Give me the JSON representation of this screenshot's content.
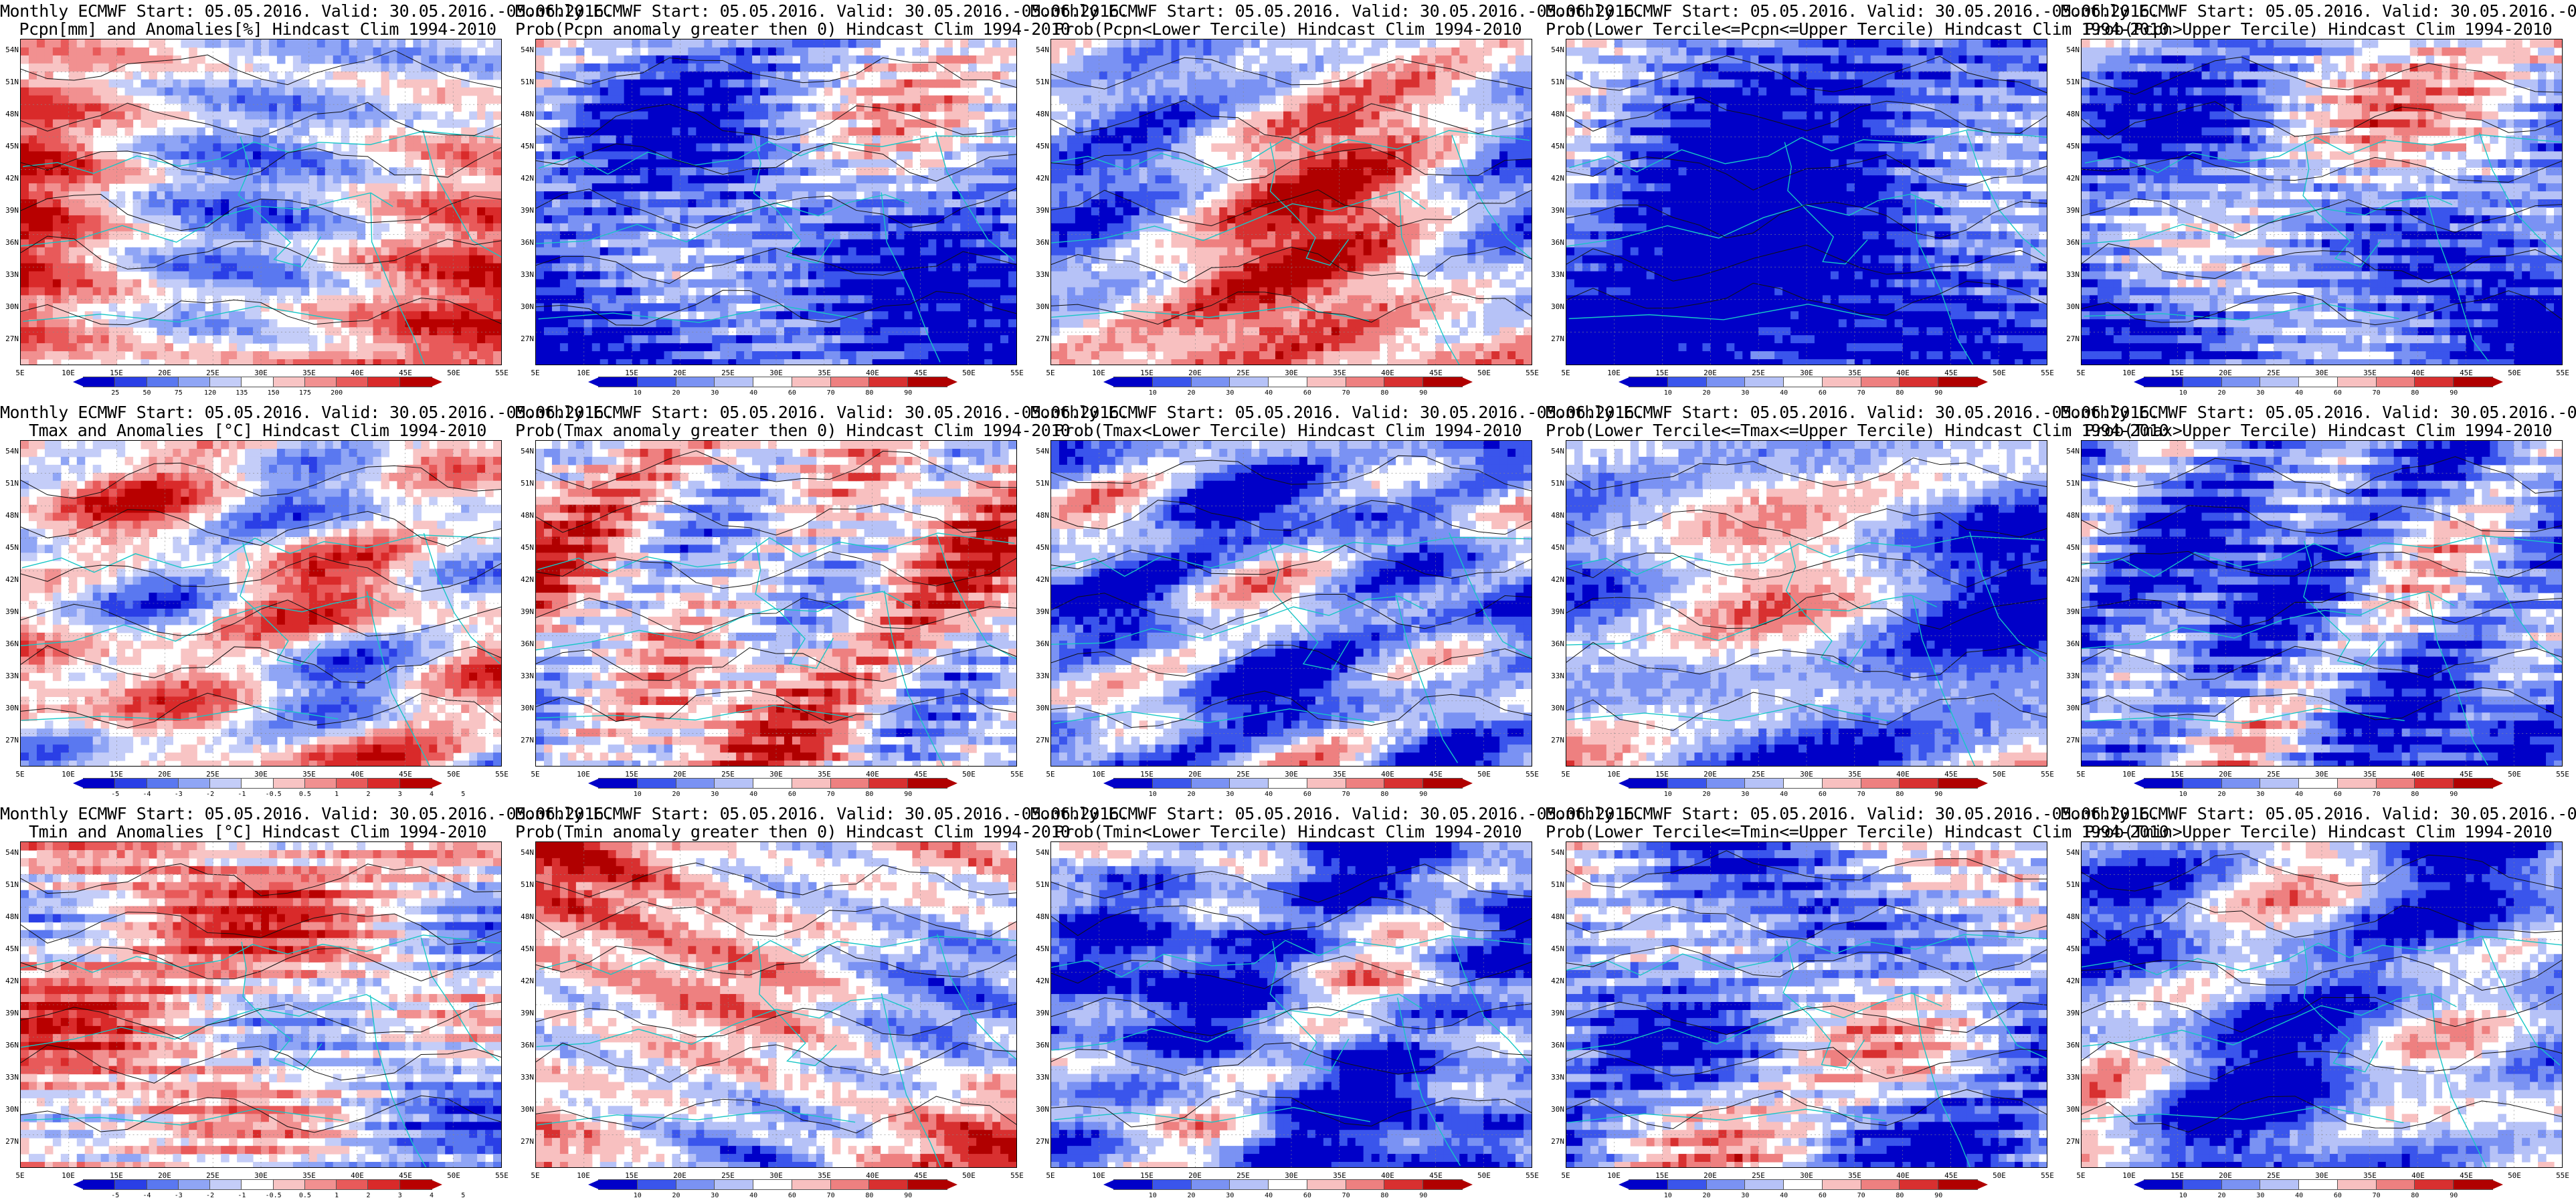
{
  "title_line1": "Monthly ECMWF Start: 05.05.2016. Valid: 30.05.2016.-05.06.2016.",
  "lat_labels": [
    "54N",
    "51N",
    "48N",
    "45N",
    "42N",
    "39N",
    "36N",
    "33N",
    "30N",
    "27N"
  ],
  "lon_labels": [
    "5E",
    "10E",
    "15E",
    "20E",
    "25E",
    "30E",
    "35E",
    "40E",
    "45E",
    "50E",
    "55E"
  ],
  "colorbars": {
    "pcpn_anom": {
      "ticks": [
        "25",
        "50",
        "75",
        "120",
        "135",
        "150",
        "175",
        "200"
      ]
    },
    "temp_anom": {
      "ticks": [
        "-5",
        "-4",
        "-3",
        "-2",
        "-1",
        "-0.5",
        "0.5",
        "1",
        "2",
        "3",
        "4",
        "5"
      ]
    },
    "prob": {
      "ticks": [
        "10",
        "20",
        "30",
        "40",
        "60",
        "70",
        "80",
        "90"
      ]
    }
  },
  "palettes": {
    "diverging": [
      "#0000c8",
      "#2a3fe6",
      "#5a78f0",
      "#8fa5f5",
      "#c4cdf8",
      "#ffffff",
      "#f8c4c4",
      "#f19090",
      "#e85a5a",
      "#d92a2a",
      "#b80000"
    ],
    "prob": [
      "#0000c8",
      "#3a55ec",
      "#7a92f3",
      "#b6c2f7",
      "#ffffff",
      "#f8c0c0",
      "#ee8080",
      "#d83030",
      "#b00000"
    ]
  },
  "panels": [
    {
      "name": "pcpn-anomalies",
      "line2": "Pcpn[mm] and Anomalies[%] Hindcast Clim 1994-2010",
      "cbar": "pcpn_anom",
      "bias": 0.15,
      "seed": 11
    },
    {
      "name": "prob-pcpn-anomaly",
      "line2": "Prob(Pcpn anomaly greater then 0) Hindcast Clim 1994-2010",
      "cbar": "prob",
      "bias": -0.55,
      "seed": 23
    },
    {
      "name": "prob-pcpn-lower",
      "line2": "Prob(Pcpn<Lower Tercile) Hindcast Clim 1994-2010",
      "cbar": "prob",
      "bias": 0.1,
      "seed": 37
    },
    {
      "name": "prob-pcpn-middle",
      "line2": "Prob(Lower Tercile<=Pcpn<=Upper Tercile) Hindcast Clim 1994-2010",
      "cbar": "prob",
      "bias": -0.7,
      "seed": 41
    },
    {
      "name": "prob-pcpn-upper",
      "line2": "Prob(Pcpn>Upper Tercile) Hindcast Clim 1994-2010",
      "cbar": "prob",
      "bias": -0.45,
      "seed": 53
    },
    {
      "name": "tmax-anomalies",
      "line2": "Tmax and Anomalies [°C] Hindcast Clim 1994-2010",
      "cbar": "temp_anom",
      "bias": 0.05,
      "seed": 61
    },
    {
      "name": "prob-tmax-anomaly",
      "line2": "Prob(Tmax anomaly greater then 0) Hindcast Clim 1994-2010",
      "cbar": "prob",
      "bias": 0.1,
      "seed": 73
    },
    {
      "name": "prob-tmax-lower",
      "line2": "Prob(Tmax<Lower Tercile) Hindcast Clim 1994-2010",
      "cbar": "prob",
      "bias": -0.45,
      "seed": 89
    },
    {
      "name": "prob-tmax-middle",
      "line2": "Prob(Lower Tercile<=Tmax<=Upper Tercile) Hindcast Clim 1994-2010",
      "cbar": "prob",
      "bias": -0.3,
      "seed": 97
    },
    {
      "name": "prob-tmax-upper",
      "line2": "Prob(Tmax>Upper Tercile) Hindcast Clim 1994-2010",
      "cbar": "prob",
      "bias": -0.5,
      "seed": 101
    },
    {
      "name": "tmin-anomalies",
      "line2": "Tmin and Anomalies [°C] Hindcast Clim 1994-2010",
      "cbar": "temp_anom",
      "bias": 0.05,
      "seed": 113
    },
    {
      "name": "prob-tmin-anomaly",
      "line2": "Prob(Tmin anomaly greater then 0) Hindcast Clim 1994-2010",
      "cbar": "prob",
      "bias": 0.15,
      "seed": 127
    },
    {
      "name": "prob-tmin-lower",
      "line2": "Prob(Tmin<Lower Tercile) Hindcast Clim 1994-2010",
      "cbar": "prob",
      "bias": -0.55,
      "seed": 131
    },
    {
      "name": "prob-tmin-middle",
      "line2": "Prob(Lower Tercile<=Tmin<=Upper Tercile) Hindcast Clim 1994-2010",
      "cbar": "prob",
      "bias": -0.35,
      "seed": 139
    },
    {
      "name": "prob-tmin-upper",
      "line2": "Prob(Tmin>Upper Tercile) Hindcast Clim 1994-2010",
      "cbar": "prob",
      "bias": -0.45,
      "seed": 149
    }
  ]
}
